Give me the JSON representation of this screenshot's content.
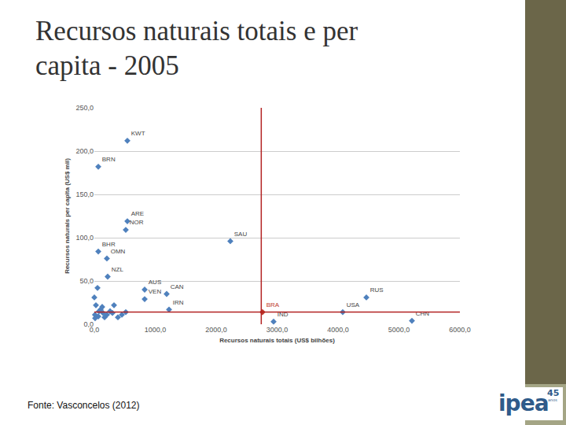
{
  "title": "Recursos naturais totais e per capita - 2005",
  "source": "Fonte: Vasconcelos (2012)",
  "logo": "ipea",
  "logo_badge": "45",
  "logo_sub": "anos",
  "chart_data": {
    "type": "scatter",
    "x_label": "Recursos naturais totais (US$ bilhões)",
    "y_label": "Recursos naturais per capita (US$ mil)",
    "xlim": [
      0,
      6000
    ],
    "ylim": [
      0,
      250
    ],
    "xticks": [
      {
        "value": 0,
        "label": "0,0"
      },
      {
        "value": 1000,
        "label": "1000,0"
      },
      {
        "value": 2000,
        "label": "2000,0"
      },
      {
        "value": 3000,
        "label": "3000,0"
      },
      {
        "value": 4000,
        "label": "4000,0"
      },
      {
        "value": 5000,
        "label": "5000,0"
      },
      {
        "value": 6000,
        "label": "6000,0"
      }
    ],
    "yticks": [
      {
        "value": 0,
        "label": "0,0"
      },
      {
        "value": 50,
        "label": "50,0"
      },
      {
        "value": 100,
        "label": "100,0"
      },
      {
        "value": 150,
        "label": "150,0"
      },
      {
        "value": 200,
        "label": "200,0"
      },
      {
        "value": 250,
        "label": "250,0"
      }
    ],
    "grid": "y",
    "marker": "diamond",
    "reference_lines": {
      "x": 2740,
      "y": 14,
      "color": "#b22222"
    },
    "series": [
      {
        "color": "#4f81bd",
        "x": [
          542,
          65,
          542,
          516,
          2232,
          65,
          206,
          219,
          826,
          1187,
          826,
          1226,
          4077,
          4465,
          5213,
          2942,
          52,
          0,
          26,
          103,
          142,
          10,
          65,
          206,
          297,
          323,
          387,
          516,
          13,
          168,
          258,
          452,
          77,
          129
        ],
        "values": [
          212,
          182,
          119,
          109,
          96,
          84,
          76,
          55,
          40,
          35,
          29,
          17,
          14,
          31,
          4,
          3,
          42,
          31,
          22,
          17,
          13,
          11,
          9,
          11,
          13,
          22,
          8,
          14,
          7,
          8,
          15,
          11,
          15,
          20
        ],
        "labels": [
          "KWT",
          "BRN",
          "ARE",
          "NOR",
          "SAU",
          "BHR",
          "OMN",
          "NZL",
          "AUS",
          "CAN",
          "VEN",
          "IRN",
          "USA",
          "RUS",
          "CHN",
          "IND",
          null,
          null,
          null,
          null,
          null,
          null,
          null,
          null,
          null,
          null,
          null,
          null,
          null,
          null,
          null,
          null,
          null,
          null
        ]
      },
      {
        "color": "#c0392b",
        "x": [
          2760
        ],
        "values": [
          14
        ],
        "labels": [
          "BRA"
        ]
      }
    ]
  }
}
